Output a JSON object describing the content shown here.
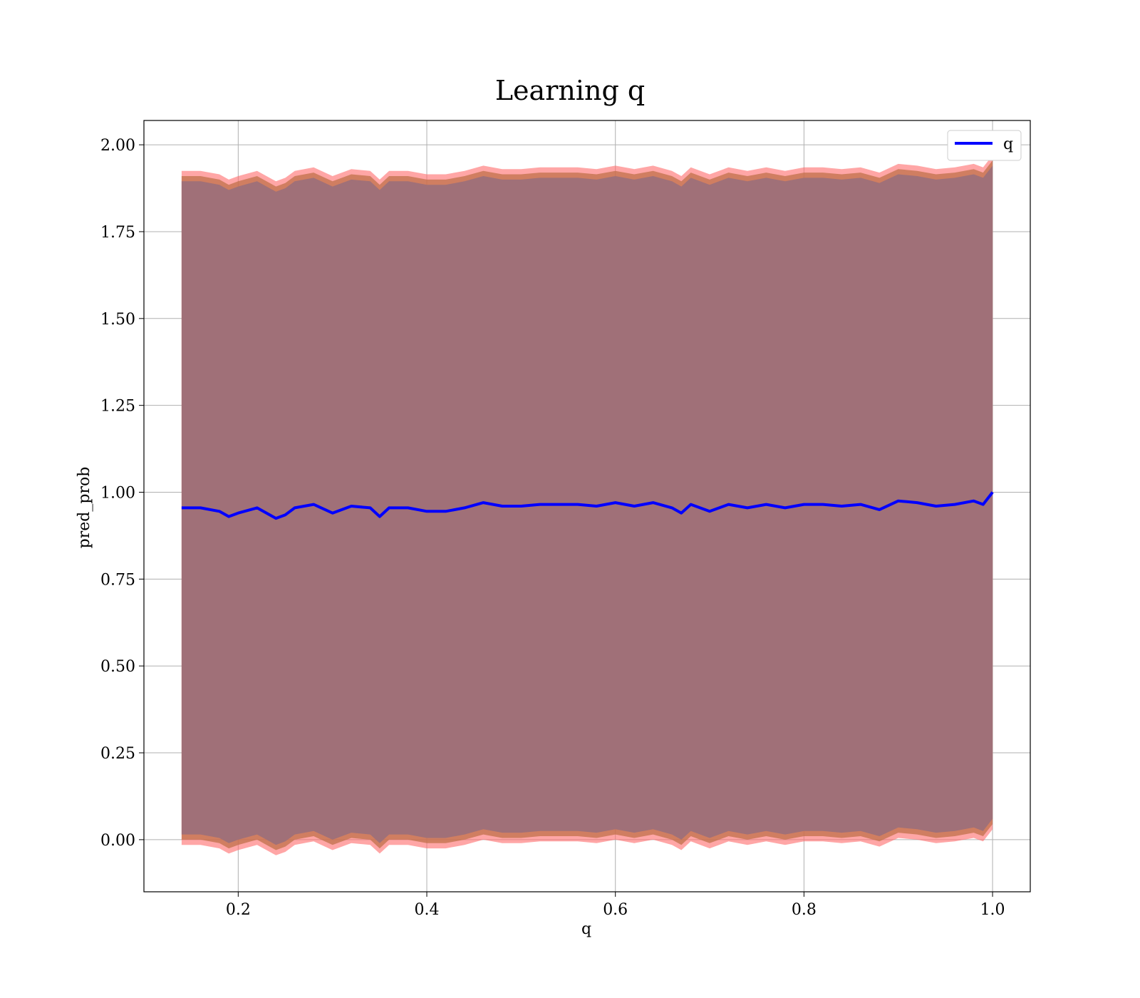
{
  "chart_data": {
    "type": "line",
    "title": "Learning q",
    "xlabel": "q",
    "ylabel": "pred_prob",
    "xlim": [
      0.1,
      1.04
    ],
    "ylim": [
      -0.15,
      2.07
    ],
    "xticks": [
      0.2,
      0.4,
      0.6,
      0.8,
      1.0
    ],
    "xtick_labels": [
      "0.2",
      "0.4",
      "0.6",
      "0.8",
      "1.0"
    ],
    "yticks": [
      0.0,
      0.25,
      0.5,
      0.75,
      1.0,
      1.25,
      1.5,
      1.75,
      2.0
    ],
    "ytick_labels": [
      "0.00",
      "0.25",
      "0.50",
      "0.75",
      "1.00",
      "1.25",
      "1.50",
      "1.75",
      "2.00"
    ],
    "grid": true,
    "legend": {
      "position": "top-right",
      "entries": [
        "q"
      ]
    },
    "colors": {
      "line": "#0000ff",
      "outer_band": "#ff6b6b",
      "middle_band": "#c0704a",
      "inner_band": "#a07078",
      "grid": "#b0b0b0"
    },
    "series": [
      {
        "name": "q",
        "x": [
          0.14,
          0.16,
          0.18,
          0.19,
          0.2,
          0.22,
          0.24,
          0.25,
          0.26,
          0.28,
          0.3,
          0.32,
          0.34,
          0.35,
          0.36,
          0.38,
          0.4,
          0.42,
          0.44,
          0.46,
          0.48,
          0.5,
          0.52,
          0.54,
          0.56,
          0.58,
          0.6,
          0.62,
          0.64,
          0.66,
          0.67,
          0.68,
          0.7,
          0.72,
          0.74,
          0.76,
          0.78,
          0.8,
          0.82,
          0.84,
          0.86,
          0.88,
          0.9,
          0.92,
          0.94,
          0.96,
          0.98,
          0.99,
          1.0
        ],
        "y": [
          0.955,
          0.955,
          0.945,
          0.93,
          0.94,
          0.955,
          0.925,
          0.935,
          0.955,
          0.965,
          0.94,
          0.96,
          0.955,
          0.93,
          0.955,
          0.955,
          0.945,
          0.945,
          0.955,
          0.97,
          0.96,
          0.96,
          0.965,
          0.965,
          0.965,
          0.96,
          0.97,
          0.96,
          0.97,
          0.955,
          0.94,
          0.965,
          0.945,
          0.965,
          0.955,
          0.965,
          0.955,
          0.965,
          0.965,
          0.96,
          0.965,
          0.95,
          0.975,
          0.97,
          0.96,
          0.965,
          0.975,
          0.965,
          1.0
        ]
      }
    ],
    "bands": [
      {
        "name": "outer",
        "lower_offset": -0.97,
        "upper_offset": 0.97
      },
      {
        "name": "middle",
        "lower_offset": -0.955,
        "upper_offset": 0.955
      },
      {
        "name": "inner",
        "lower_offset": -0.94,
        "upper_offset": 0.94
      }
    ]
  }
}
